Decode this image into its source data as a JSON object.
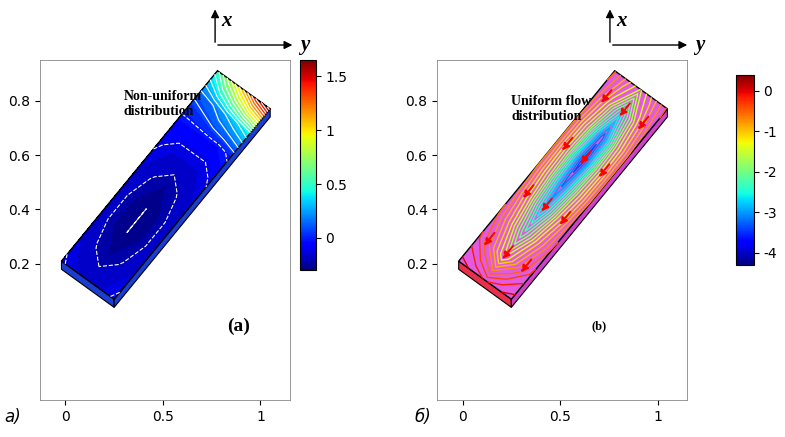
{
  "chart_data": [
    {
      "type": "contour",
      "panel_label": "а)",
      "arrow_labels": [
        "x",
        "y"
      ],
      "annotation": "Non-uniform\ndistribution",
      "label": "(a)",
      "xlim": [
        -0.13,
        1.15
      ],
      "ylim": [
        -0.3,
        0.95
      ],
      "xticks": [
        0,
        0.5,
        1
      ],
      "yticks": [
        0.2,
        0.4,
        0.6,
        0.8
      ],
      "values": [
        [
          -0.1,
          -0.15,
          -0.15,
          -0.15,
          -0.1
        ],
        [
          -0.15,
          -0.2,
          -0.25,
          -0.2,
          -0.15
        ],
        [
          -0.15,
          -0.25,
          -0.3,
          -0.25,
          -0.15
        ],
        [
          -0.15,
          -0.25,
          -0.3,
          -0.25,
          -0.15
        ],
        [
          -0.15,
          -0.2,
          -0.25,
          -0.2,
          -0.15
        ],
        [
          -0.1,
          -0.15,
          -0.15,
          -0.15,
          -0.1
        ],
        [
          -0.05,
          -0.05,
          -0.05,
          -0.05,
          0.0
        ],
        [
          0.1,
          0.15,
          0.25,
          0.35,
          0.45
        ],
        [
          0.5,
          0.8,
          1.1,
          1.4,
          1.6
        ]
      ],
      "colorbar_lim": [
        -0.3,
        1.65
      ],
      "colorbar_ticks": [
        0,
        0.5,
        1,
        1.5
      ]
    },
    {
      "type": "contour",
      "panel_label": "б)",
      "arrow_labels": [
        "x",
        "y"
      ],
      "annotation": "Uniform flow\ndistribution",
      "label": "(b)",
      "xlim": [
        -0.13,
        1.15
      ],
      "ylim": [
        -0.3,
        0.95
      ],
      "xticks": [
        0,
        0.5,
        1
      ],
      "yticks": [
        0.2,
        0.4,
        0.6,
        0.8
      ],
      "values": [
        [
          0.1,
          0.0,
          -0.2,
          0.0,
          0.1
        ],
        [
          -0.3,
          -0.8,
          -1.5,
          -0.8,
          -0.3
        ],
        [
          -0.5,
          -1.2,
          -2.2,
          -1.2,
          -0.5
        ],
        [
          -0.6,
          -1.5,
          -2.8,
          -1.5,
          -0.6
        ],
        [
          -0.7,
          -1.7,
          -3.2,
          -1.7,
          -0.7
        ],
        [
          -0.7,
          -1.8,
          -3.5,
          -1.8,
          -0.7
        ],
        [
          -0.7,
          -1.7,
          -3.3,
          -1.7,
          -0.7
        ],
        [
          -0.6,
          -1.4,
          -2.5,
          -1.4,
          -0.6
        ],
        [
          -0.5,
          -1.0,
          -1.5,
          -1.0,
          -0.5
        ]
      ],
      "colorbar_lim": [
        -4.3,
        0.4
      ],
      "colorbar_ticks": [
        -4,
        -3,
        -2,
        -1,
        0
      ]
    }
  ]
}
